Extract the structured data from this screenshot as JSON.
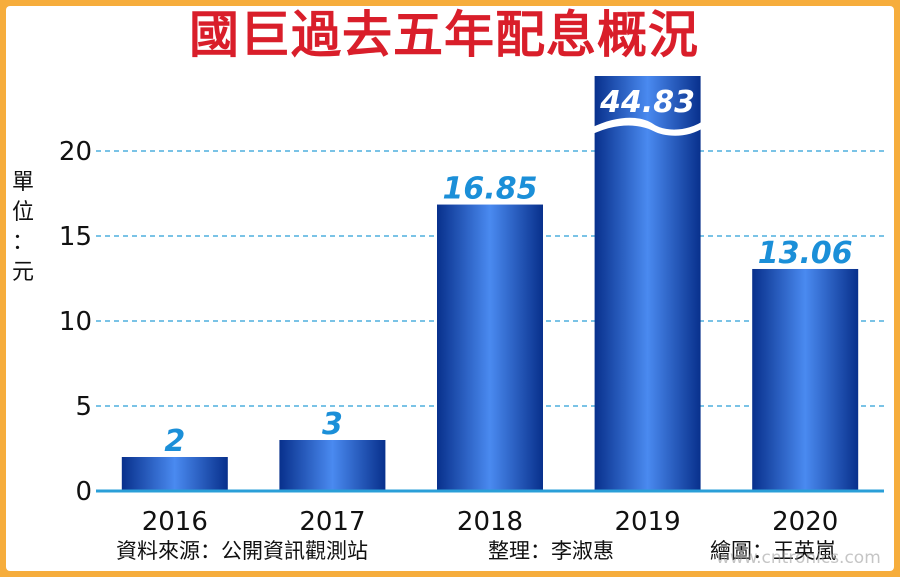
{
  "title": "國巨過去五年配息概況",
  "ylabel_chars": [
    "單",
    "位",
    "：",
    "元"
  ],
  "credits": {
    "source": "資料來源：公開資訊觀測站",
    "editor": "整理：李淑惠",
    "artist": "繪圖：王英嵐"
  },
  "watermark": "www.cntronics.com",
  "colors": {
    "bar_dark": "#08308c",
    "bar_light": "#4a8af0",
    "label": "#1b8fd8",
    "grid": "#2a9fd8",
    "title": "#d91e2a"
  },
  "chart_data": {
    "type": "bar",
    "categories": [
      "2016",
      "2017",
      "2018",
      "2019",
      "2020"
    ],
    "values": [
      2,
      3,
      16.85,
      44.83,
      13.06
    ],
    "value_labels": [
      "2",
      "3",
      "16.85",
      "44.83",
      "13.06"
    ],
    "yticks": [
      "0",
      "5",
      "10",
      "15",
      "20"
    ],
    "ylabel": "單位：元",
    "ylim": [
      0,
      20
    ],
    "axis_break": true,
    "grid": true
  }
}
